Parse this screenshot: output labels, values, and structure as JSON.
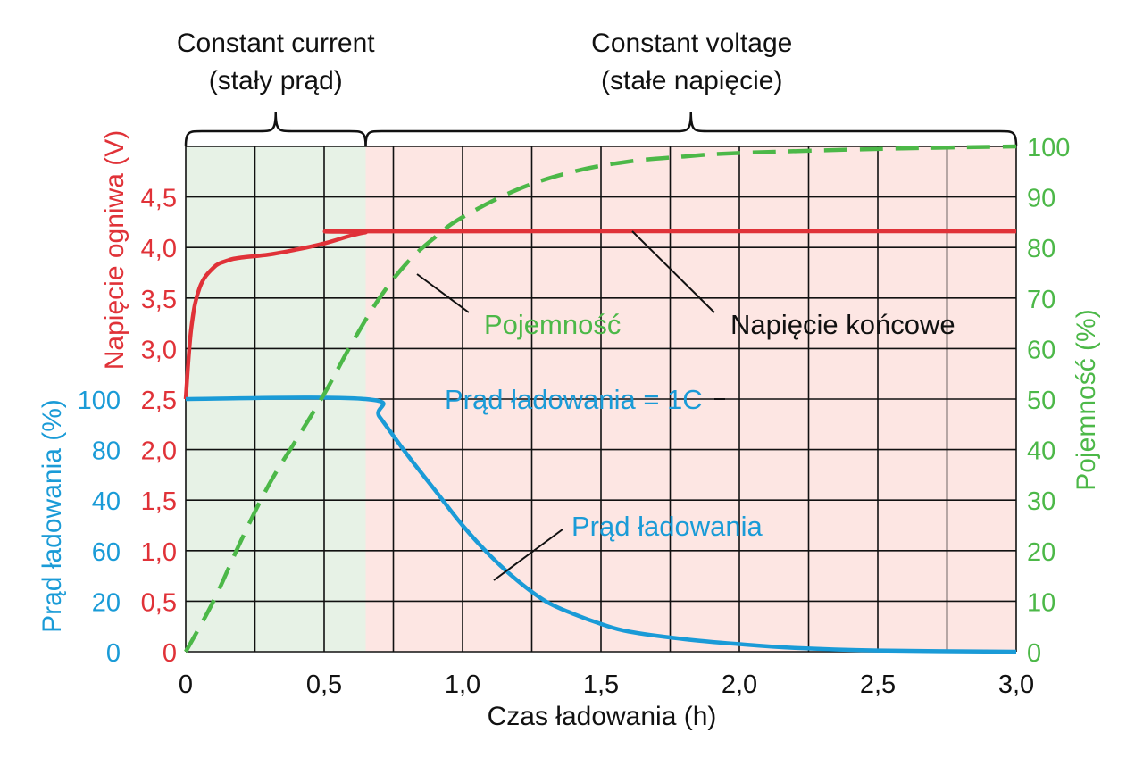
{
  "colors": {
    "voltage": "#e03238",
    "current": "#1a9bd7",
    "capacity": "#4cb848",
    "text": "#111111",
    "cc_region": "#e7f2e6",
    "cv_region": "#fde6e3",
    "grid": "#111111"
  },
  "phases": {
    "cc": {
      "line1": "Constant current",
      "line2": "(stały prąd)"
    },
    "cv": {
      "line1": "Constant voltage",
      "line2": "(stałe napięcie)"
    }
  },
  "chart_data": {
    "type": "line",
    "xlabel": "Czas ładowania (h)",
    "xlim": [
      0,
      3
    ],
    "x_ticks": [
      "0",
      "0,5",
      "1,0",
      "1,5",
      "2,0",
      "2,5",
      "3,0"
    ],
    "cc_end_time": 0.65,
    "axes": {
      "voltage": {
        "label": "Napięcie ogniwa (V)",
        "range": [
          0,
          5
        ],
        "ticks": [
          "0",
          "0,5",
          "1,0",
          "1,5",
          "2,0",
          "2,5",
          "3,0",
          "3,5",
          "4,0",
          "4,5"
        ]
      },
      "current": {
        "label": "Prąd ładowania (%)",
        "ticks": [
          "0",
          "20",
          "60",
          "40",
          "80",
          "100"
        ]
      },
      "capacity": {
        "label": "Pojemność (%)",
        "range": [
          0,
          100
        ],
        "ticks": [
          "0",
          "10",
          "20",
          "30",
          "40",
          "50",
          "60",
          "70",
          "80",
          "90",
          "100"
        ]
      }
    },
    "series": [
      {
        "key": "voltage",
        "style": "solid",
        "x": [
          0,
          0.02,
          0.05,
          0.1,
          0.15,
          0.2,
          0.3,
          0.4,
          0.5,
          0.6,
          0.65,
          0.7,
          3.0
        ],
        "y": [
          2.5,
          3.2,
          3.6,
          3.8,
          3.87,
          3.9,
          3.93,
          3.98,
          4.04,
          4.12,
          4.15,
          4.16,
          4.16
        ]
      },
      {
        "key": "current",
        "style": "solid",
        "x": [
          0,
          0.65,
          0.7,
          0.8,
          0.9,
          1.0,
          1.1,
          1.2,
          1.3,
          1.4,
          1.5,
          1.6,
          1.8,
          2.0,
          2.2,
          2.5,
          3.0
        ],
        "y": [
          100,
          100,
          93,
          78,
          64,
          50,
          38,
          28,
          20,
          15,
          11,
          8,
          5,
          3,
          1.5,
          0.5,
          0
        ]
      },
      {
        "key": "capacity",
        "style": "dashed",
        "x": [
          0,
          0.1,
          0.2,
          0.3,
          0.4,
          0.5,
          0.6,
          0.7,
          0.8,
          0.9,
          1.0,
          1.2,
          1.4,
          1.6,
          1.8,
          2.0,
          2.5,
          3.0
        ],
        "y": [
          0,
          10,
          22,
          33,
          42,
          51,
          61,
          70,
          77,
          82,
          86,
          91.5,
          95,
          97,
          98,
          98.7,
          99.5,
          100
        ]
      }
    ],
    "annotations": {
      "capacity": "Pojemność",
      "voltage_end": "Napięcie końcowe",
      "current_1c": "Prąd ładowania = 1C",
      "current": "Prąd ładowania"
    }
  }
}
